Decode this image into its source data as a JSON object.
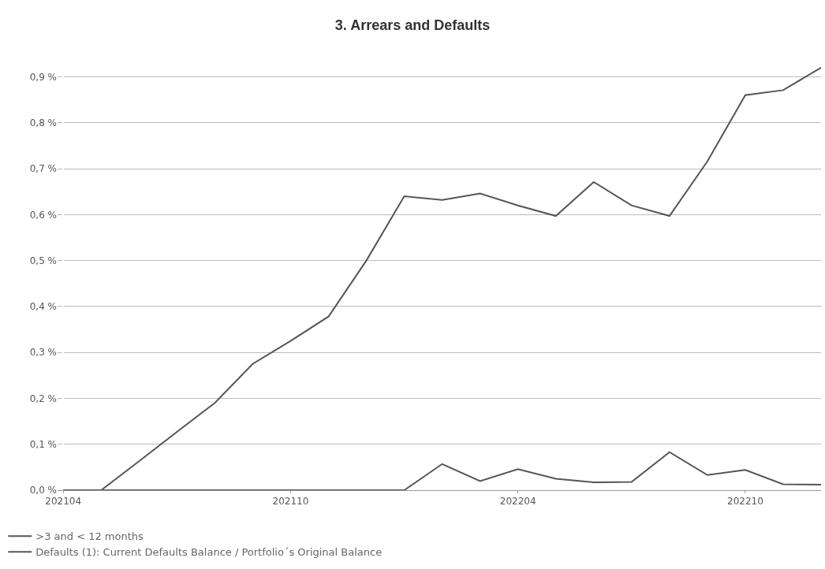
{
  "chart_data": {
    "type": "line",
    "title": "3. Arrears and Defaults",
    "categories": [
      "202104",
      null,
      null,
      null,
      null,
      null,
      "202110",
      null,
      null,
      null,
      null,
      null,
      "202204",
      null,
      null,
      null,
      null,
      null,
      "202210",
      null,
      null
    ],
    "series": [
      {
        "name": ">3 and < 12 months",
        "color": "#555555",
        "values": [
          0,
          0,
          0,
          0,
          0,
          0,
          0,
          0,
          0,
          0,
          0.057,
          0.02,
          0.046,
          0.025,
          0.017,
          0.018,
          0.083,
          0.033,
          0.044,
          0.013,
          0.012
        ]
      },
      {
        "name": "Defaults (1): Current Defaults Balance / Portfolio´s Original Balance",
        "color": "#555555",
        "values": [
          0,
          0,
          0.063,
          0.127,
          0.19,
          0.275,
          0.325,
          0.378,
          0.5,
          0.64,
          0.632,
          0.646,
          0.62,
          0.597,
          0.671,
          0.62,
          0.597,
          0.716,
          0.86,
          0.871,
          0.92
        ]
      }
    ],
    "ylim": [
      0,
      0.93
    ],
    "yticks": [
      {
        "value": 0,
        "label": "0,0 %"
      },
      {
        "value": 0.1,
        "label": "0,1 %"
      },
      {
        "value": 0.2,
        "label": "0,2 %"
      },
      {
        "value": 0.3,
        "label": "0,3 %"
      },
      {
        "value": 0.4,
        "label": "0,4 %"
      },
      {
        "value": 0.5,
        "label": "0,5 %"
      },
      {
        "value": 0.6,
        "label": "0,6 %"
      },
      {
        "value": 0.7,
        "label": "0,7 %"
      },
      {
        "value": 0.8,
        "label": "0,8 %"
      },
      {
        "value": 0.9,
        "label": "0,9 %"
      }
    ],
    "grid": "y",
    "legend": "bottom",
    "marker": "none",
    "line_style": "solid"
  }
}
